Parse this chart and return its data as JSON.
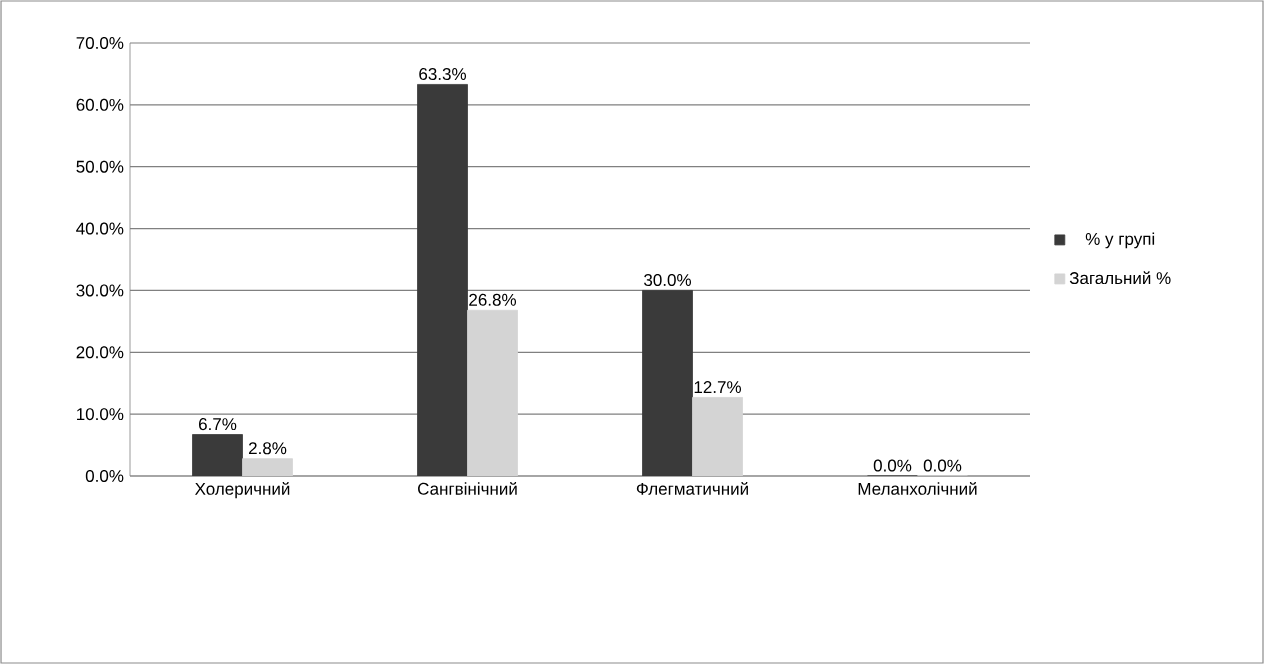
{
  "chart_data": {
    "type": "bar",
    "categories": [
      "Холеричний",
      "Сангвінічний",
      "Флегматичний",
      "Меланхолічний"
    ],
    "series": [
      {
        "name": "% у групі",
        "color": "#3a3a3a",
        "values": [
          6.7,
          63.3,
          30.0,
          0.0
        ],
        "value_labels": [
          "6.7%",
          "63.3%",
          "30.0%",
          "0.0%"
        ]
      },
      {
        "name": "Загальний %",
        "color": "#d4d4d4",
        "values": [
          2.8,
          26.8,
          12.7,
          0.0
        ],
        "value_labels": [
          "2.8%",
          "26.8%",
          "12.7%",
          "0.0%"
        ]
      }
    ],
    "ylim": [
      0,
      70
    ],
    "yticks": [
      {
        "value": 0,
        "label": "0.0%"
      },
      {
        "value": 10,
        "label": "10.0%"
      },
      {
        "value": 20,
        "label": "20.0%"
      },
      {
        "value": 30,
        "label": "30.0%"
      },
      {
        "value": 40,
        "label": "40.0%"
      },
      {
        "value": 50,
        "label": "50.0%"
      },
      {
        "value": 60,
        "label": "60.0%"
      },
      {
        "value": 70,
        "label": "70.0%"
      }
    ],
    "grid": "y",
    "legend": "right"
  }
}
